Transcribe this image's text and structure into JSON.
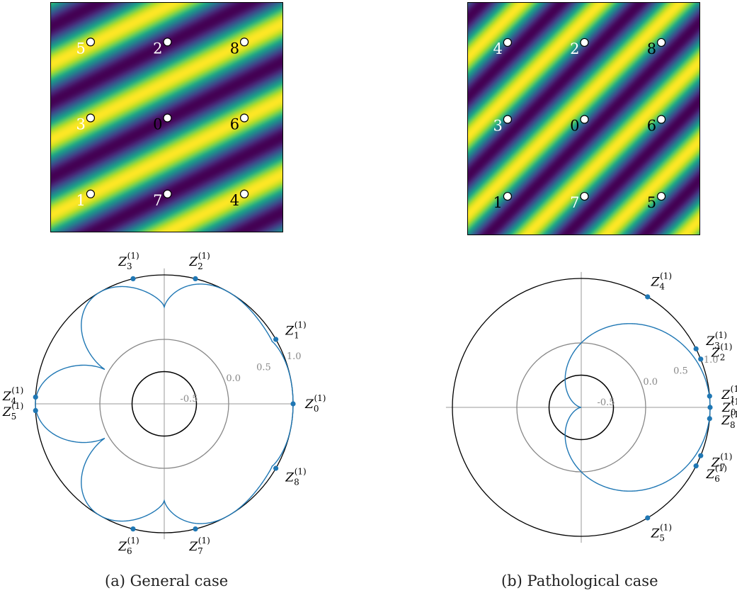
{
  "captions": {
    "a": "(a) General case",
    "b": "(b) Pathological case"
  },
  "colors": {
    "curve": "#1f77b4",
    "unit_circle": "#000000",
    "inner_ring": "#888888",
    "grid": "#999999",
    "label_white": "#ffffff",
    "label_black": "#000000"
  },
  "panels": [
    {
      "id": "a",
      "heatmap": {
        "colormap": "viridis",
        "pattern": "diagonal-bands",
        "grid_labels": [
          [
            "5",
            "2",
            "8"
          ],
          [
            "3",
            "0",
            "6"
          ],
          [
            "1",
            "7",
            "4"
          ]
        ],
        "label_colors": [
          [
            "white",
            "white",
            "black"
          ],
          [
            "white",
            "black",
            "black"
          ],
          [
            "white",
            "white",
            "black"
          ]
        ]
      },
      "polar": {
        "ring_values": [
          "-0.5",
          "0.0",
          "0.5",
          "1.0"
        ],
        "points": [
          {
            "label": "Z",
            "sub": "0",
            "sup": "(1)",
            "angle_deg": 0
          },
          {
            "label": "Z",
            "sub": "1",
            "sup": "(1)",
            "angle_deg": 30
          },
          {
            "label": "Z",
            "sub": "2",
            "sup": "(1)",
            "angle_deg": 76
          },
          {
            "label": "Z",
            "sub": "3",
            "sup": "(1)",
            "angle_deg": 104
          },
          {
            "label": "Z",
            "sub": "4",
            "sup": "(1)",
            "angle_deg": 177
          },
          {
            "label": "Z",
            "sub": "5",
            "sup": "(1)",
            "angle_deg": 183
          },
          {
            "label": "Z",
            "sub": "6",
            "sup": "(1)",
            "angle_deg": 256
          },
          {
            "label": "Z",
            "sub": "7",
            "sup": "(1)",
            "angle_deg": 284
          },
          {
            "label": "Z",
            "sub": "8",
            "sup": "(1)",
            "angle_deg": 330
          }
        ]
      }
    },
    {
      "id": "b",
      "heatmap": {
        "colormap": "viridis",
        "pattern": "diagonal-bands",
        "grid_labels": [
          [
            "4",
            "2",
            "8"
          ],
          [
            "3",
            "0",
            "6"
          ],
          [
            "1",
            "7",
            "5"
          ]
        ],
        "label_colors": [
          [
            "white",
            "white",
            "black"
          ],
          [
            "white",
            "black",
            "black"
          ],
          [
            "black",
            "white",
            "black"
          ]
        ]
      },
      "polar": {
        "ring_values": [
          "-0.5",
          "0.0",
          "0.5",
          "1.0"
        ],
        "points": [
          {
            "label": "Z",
            "sub": "0",
            "sup": "(1)",
            "angle_deg": 0
          },
          {
            "label": "Z",
            "sub": "1",
            "sup": "(1)",
            "angle_deg": 5
          },
          {
            "label": "Z",
            "sub": "2",
            "sup": "(1)",
            "angle_deg": 22
          },
          {
            "label": "Z",
            "sub": "3",
            "sup": "(1)",
            "angle_deg": 27
          },
          {
            "label": "Z",
            "sub": "4",
            "sup": "(1)",
            "angle_deg": 59
          },
          {
            "label": "Z",
            "sub": "5",
            "sup": "(1)",
            "angle_deg": -59
          },
          {
            "label": "Z",
            "sub": "6",
            "sup": "(1)",
            "angle_deg": -27
          },
          {
            "label": "Z",
            "sub": "7",
            "sup": "(1)",
            "angle_deg": -22
          },
          {
            "label": "Z",
            "sub": "8",
            "sup": "(1)",
            "angle_deg": -5
          }
        ]
      }
    }
  ]
}
